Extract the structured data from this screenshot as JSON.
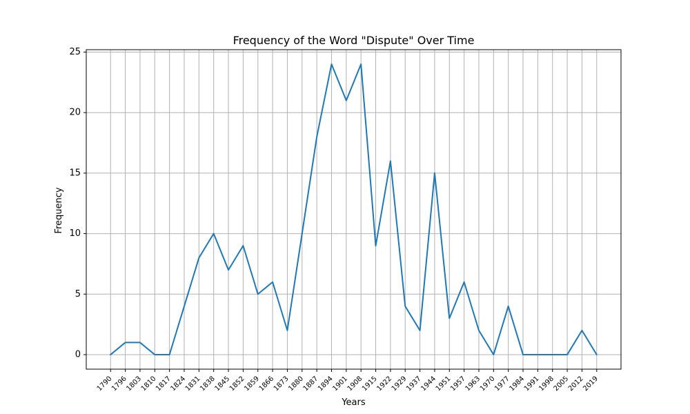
{
  "chart_data": {
    "type": "line",
    "title": "Frequency of the Word \"Dispute\" Over Time",
    "xlabel": "Years",
    "ylabel": "Frequency",
    "categories": [
      "1790",
      "1796",
      "1803",
      "1810",
      "1817",
      "1824",
      "1831",
      "1838",
      "1845",
      "1852",
      "1859",
      "1866",
      "1873",
      "1880",
      "1887",
      "1894",
      "1901",
      "1908",
      "1915",
      "1922",
      "1929",
      "1937",
      "1944",
      "1951",
      "1957",
      "1963",
      "1970",
      "1977",
      "1984",
      "1991",
      "1998",
      "2005",
      "2012",
      "2019"
    ],
    "series": [
      {
        "values": [
          0,
          1,
          1,
          0,
          0,
          4,
          8,
          10,
          7,
          9,
          5,
          6,
          2,
          10,
          18,
          24,
          21,
          24,
          9,
          16,
          4,
          2,
          15,
          3,
          6,
          2,
          0,
          4,
          0,
          0,
          0,
          0,
          2,
          0
        ]
      }
    ],
    "ylim": [
      -1.2,
      25.2
    ],
    "yticks": [
      0,
      5,
      10,
      15,
      20,
      25
    ],
    "grid": true,
    "line_color": "#1f77b4"
  }
}
